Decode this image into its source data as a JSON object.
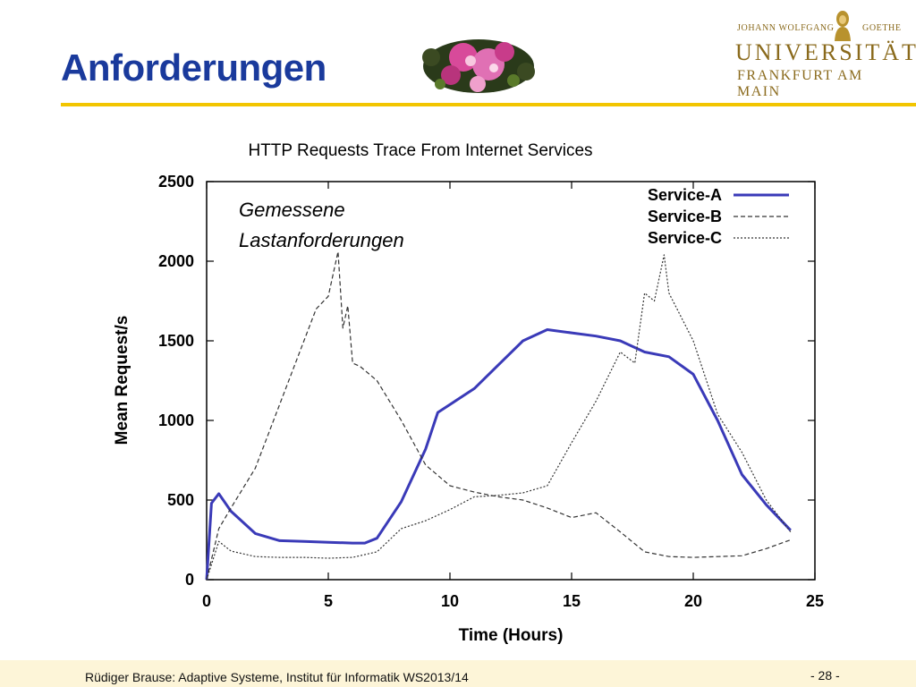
{
  "slide": {
    "title": "Anforderungen",
    "footer": "Rüdiger Brause: Adaptive Systeme, Institut für Informatik WS2013/14",
    "page": "- 28 -"
  },
  "logo": {
    "line1a": "JOHANN WOLFGANG",
    "line1b": "GOETHE",
    "line2": "UNIVERSITÄT",
    "line3": "FRANKFURT AM MAIN"
  },
  "colors": {
    "title": "#1a3a9c",
    "accent_rule": "#f2c500",
    "series_a": "#3a3ab8",
    "series_bc": "#333333"
  },
  "chart_data": {
    "type": "line",
    "title": "HTTP Requests Trace From Internet Services",
    "xlabel": "Time (Hours)",
    "ylabel": "Mean Request/s",
    "xlim": [
      0,
      25
    ],
    "ylim": [
      0,
      2500
    ],
    "xticks": [
      0,
      5,
      10,
      15,
      20,
      25
    ],
    "yticks": [
      0,
      500,
      1000,
      1500,
      2000,
      2500
    ],
    "legend_position": "top-right",
    "grid": false,
    "annotation": "Gemessene Lastanforderungen",
    "series": [
      {
        "name": "Service-A",
        "style": "solid",
        "x": [
          0,
          0.2,
          0.5,
          1,
          2,
          3,
          4,
          5,
          6,
          6.5,
          7,
          8,
          9,
          9.5,
          10,
          11,
          12,
          13,
          14,
          15,
          16,
          17,
          18,
          19,
          20,
          21,
          22,
          23,
          24
        ],
        "y": [
          0,
          480,
          540,
          430,
          290,
          245,
          240,
          235,
          230,
          230,
          260,
          490,
          820,
          1050,
          1100,
          1200,
          1350,
          1500,
          1570,
          1550,
          1530,
          1500,
          1430,
          1400,
          1290,
          1000,
          660,
          470,
          310
        ]
      },
      {
        "name": "Service-B",
        "style": "dashed",
        "x": [
          0,
          0.5,
          1,
          2,
          3,
          4,
          4.5,
          5,
          5.4,
          5.6,
          5.8,
          6,
          6.3,
          7,
          8,
          9,
          10,
          11,
          12,
          13,
          14,
          15,
          16,
          17,
          18,
          19,
          20,
          21,
          22,
          23,
          24
        ],
        "y": [
          0,
          320,
          450,
          700,
          1100,
          1500,
          1700,
          1780,
          2060,
          1580,
          1720,
          1360,
          1340,
          1250,
          1000,
          720,
          590,
          550,
          520,
          500,
          450,
          390,
          420,
          300,
          175,
          145,
          140,
          145,
          150,
          195,
          250
        ]
      },
      {
        "name": "Service-C",
        "style": "dashed",
        "x": [
          0,
          0.5,
          1,
          2,
          3,
          4,
          5,
          6,
          7,
          8,
          9,
          10,
          11,
          12,
          13,
          14,
          15,
          16,
          17,
          17.6,
          18,
          18.4,
          18.8,
          19,
          20,
          21,
          22,
          23,
          24
        ],
        "y": [
          0,
          240,
          180,
          145,
          140,
          140,
          135,
          140,
          175,
          320,
          370,
          440,
          520,
          530,
          545,
          590,
          860,
          1120,
          1430,
          1360,
          1800,
          1750,
          2040,
          1800,
          1500,
          1040,
          800,
          500,
          300
        ]
      }
    ]
  }
}
